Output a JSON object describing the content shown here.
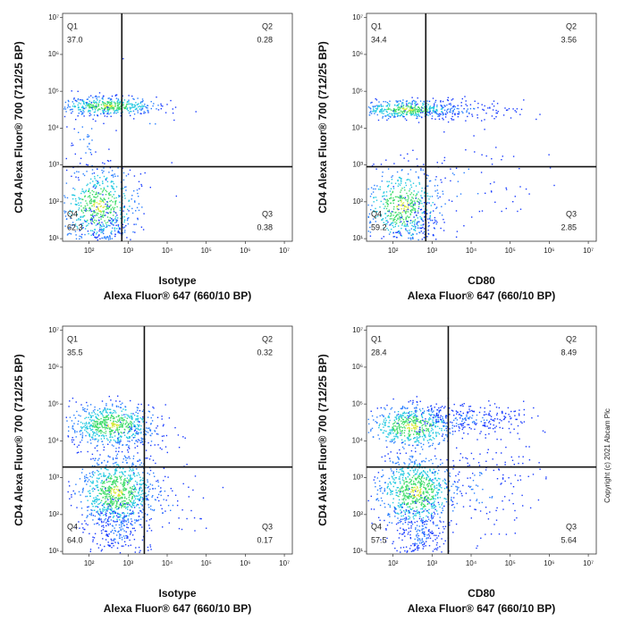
{
  "chart_data": [
    {
      "type": "scatter",
      "log": true,
      "x_label": [
        "Isotype",
        "Alexa Fluor® 647  (660/10 BP)"
      ],
      "y_label": "CD4 Alexa Fluor® 700  (712/25 BP)",
      "xlim": [
        21,
        16000000
      ],
      "ylim": [
        8.5,
        13000000
      ],
      "xticks": [
        {
          "value": 100,
          "label": "10²"
        },
        {
          "value": 1000,
          "label": "10³"
        },
        {
          "value": 10000,
          "label": "10⁴"
        },
        {
          "value": 100000,
          "label": "10⁵"
        },
        {
          "value": 1000000,
          "label": "10⁶"
        },
        {
          "value": 10000000,
          "label": "10⁷"
        }
      ],
      "yticks": [
        {
          "value": 10,
          "label": "10¹"
        },
        {
          "value": 100,
          "label": "10²"
        },
        {
          "value": 1000,
          "label": "10³"
        },
        {
          "value": 10000,
          "label": "10⁴"
        },
        {
          "value": 100000,
          "label": "10⁵"
        },
        {
          "value": 1000000,
          "label": "10⁶"
        },
        {
          "value": 10000000,
          "label": "10⁷"
        }
      ],
      "gate": {
        "x": 690,
        "y": 900
      },
      "quadrants": [
        {
          "name": "Q1",
          "value": "37.0"
        },
        {
          "name": "Q2",
          "value": "0.28"
        },
        {
          "name": "Q3",
          "value": "0.38"
        },
        {
          "name": "Q4",
          "value": "62.3"
        }
      ]
    },
    {
      "type": "scatter",
      "log": true,
      "x_label": [
        "CD80",
        "Alexa Fluor® 647  (660/10 BP)"
      ],
      "y_label": "CD4 Alexa Fluor® 700  (712/25 BP)",
      "xlim": [
        21,
        16000000
      ],
      "ylim": [
        8.5,
        13000000
      ],
      "xticks": [
        {
          "value": 100,
          "label": "10²"
        },
        {
          "value": 1000,
          "label": "10³"
        },
        {
          "value": 10000,
          "label": "10⁴"
        },
        {
          "value": 100000,
          "label": "10⁵"
        },
        {
          "value": 1000000,
          "label": "10⁶"
        },
        {
          "value": 10000000,
          "label": "10⁷"
        }
      ],
      "yticks": [
        {
          "value": 10,
          "label": "10¹"
        },
        {
          "value": 100,
          "label": "10²"
        },
        {
          "value": 1000,
          "label": "10³"
        },
        {
          "value": 10000,
          "label": "10⁴"
        },
        {
          "value": 100000,
          "label": "10⁵"
        },
        {
          "value": 1000000,
          "label": "10⁶"
        },
        {
          "value": 10000000,
          "label": "10⁷"
        }
      ],
      "gate": {
        "x": 690,
        "y": 900
      },
      "quadrants": [
        {
          "name": "Q1",
          "value": "34.4"
        },
        {
          "name": "Q2",
          "value": "3.56"
        },
        {
          "name": "Q3",
          "value": "2.85"
        },
        {
          "name": "Q4",
          "value": "59.2"
        }
      ]
    },
    {
      "type": "scatter",
      "log": true,
      "x_label": [
        "Isotype",
        "Alexa Fluor® 647  (660/10 BP)"
      ],
      "y_label": "CD4 Alexa Fluor® 700  (712/25 BP)",
      "xlim": [
        21,
        16000000
      ],
      "ylim": [
        8.5,
        13000000
      ],
      "xticks": [
        {
          "value": 100,
          "label": "10²"
        },
        {
          "value": 1000,
          "label": "10³"
        },
        {
          "value": 10000,
          "label": "10⁴"
        },
        {
          "value": 100000,
          "label": "10⁵"
        },
        {
          "value": 1000000,
          "label": "10⁶"
        },
        {
          "value": 10000000,
          "label": "10⁷"
        }
      ],
      "yticks": [
        {
          "value": 10,
          "label": "10¹"
        },
        {
          "value": 100,
          "label": "10²"
        },
        {
          "value": 1000,
          "label": "10³"
        },
        {
          "value": 10000,
          "label": "10⁴"
        },
        {
          "value": 100000,
          "label": "10⁵"
        },
        {
          "value": 1000000,
          "label": "10⁶"
        },
        {
          "value": 10000000,
          "label": "10⁷"
        }
      ],
      "gate": {
        "x": 2600,
        "y": 1950
      },
      "quadrants": [
        {
          "name": "Q1",
          "value": "35.5"
        },
        {
          "name": "Q2",
          "value": "0.32"
        },
        {
          "name": "Q3",
          "value": "0.17"
        },
        {
          "name": "Q4",
          "value": "64.0"
        }
      ]
    },
    {
      "type": "scatter",
      "log": true,
      "x_label": [
        "CD80",
        "Alexa Fluor® 647  (660/10 BP)"
      ],
      "y_label": "CD4 Alexa Fluor® 700  (712/25 BP)",
      "xlim": [
        21,
        16000000
      ],
      "ylim": [
        8.5,
        13000000
      ],
      "xticks": [
        {
          "value": 100,
          "label": "10²"
        },
        {
          "value": 1000,
          "label": "10³"
        },
        {
          "value": 10000,
          "label": "10⁴"
        },
        {
          "value": 100000,
          "label": "10⁵"
        },
        {
          "value": 1000000,
          "label": "10⁶"
        },
        {
          "value": 10000000,
          "label": "10⁷"
        }
      ],
      "yticks": [
        {
          "value": 10,
          "label": "10¹"
        },
        {
          "value": 100,
          "label": "10²"
        },
        {
          "value": 1000,
          "label": "10³"
        },
        {
          "value": 10000,
          "label": "10⁴"
        },
        {
          "value": 100000,
          "label": "10⁵"
        },
        {
          "value": 1000000,
          "label": "10⁶"
        },
        {
          "value": 10000000,
          "label": "10⁷"
        }
      ],
      "gate": {
        "x": 2600,
        "y": 1950
      },
      "quadrants": [
        {
          "name": "Q1",
          "value": "28.4"
        },
        {
          "name": "Q2",
          "value": "8.49"
        },
        {
          "name": "Q3",
          "value": "5.64"
        },
        {
          "name": "Q4",
          "value": "57.5"
        }
      ]
    }
  ],
  "copyright": "Copyright (c) 2021 Abcam Plc"
}
